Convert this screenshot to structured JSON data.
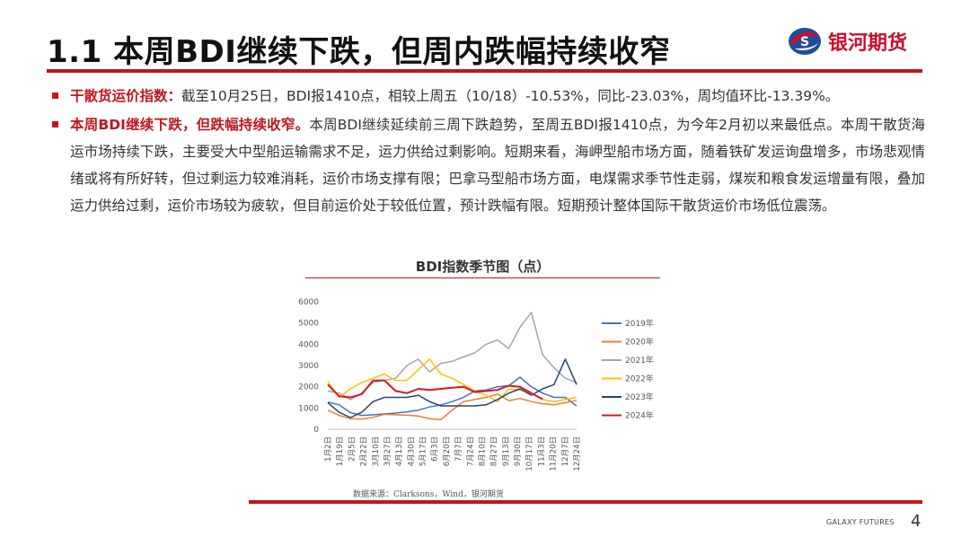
{
  "header": {
    "title": "1.1 本周BDI继续下跌，但周内跌幅持续收窄",
    "logo_text": "银河期货"
  },
  "bullets": [
    {
      "lead": "干散货运价指数：",
      "text": "截至10月25日，BDI报1410点，相较上周五（10/18）-10.53%，同比-23.03%，周均值环比-13.39%。"
    },
    {
      "lead": "本周BDI继续下跌，但跌幅持续收窄。",
      "text": "本周BDI继续延续前三周下跌趋势，至周五BDI报1410点，为今年2月初以来最低点。本周干散货海运市场持续下跌，主要受大中型船运输需求不足，运力供给过剩影响。短期来看，海岬型船市场方面，随着铁矿发运询盘增多，市场悲观情绪或将有所好转，但过剩运力较难消耗，运价市场支撑有限；巴拿马型船市场方面，电煤需求季节性走弱，煤炭和粮食发运增量有限，叠加运力供给过剩，运价市场较为疲软，但目前运价处于较低位置，预计跌幅有限。短期预计整体国际干散货运价市场低位震荡。"
    }
  ],
  "chart_title": "BDI指数季节图（点）",
  "chart_data": {
    "type": "line",
    "title": "BDI指数季节图（点）",
    "ylim": [
      0,
      6000
    ],
    "yticks": [
      0,
      1000,
      2000,
      3000,
      4000,
      5000,
      6000
    ],
    "xticks": [
      "1月2日",
      "1月19日",
      "2月5日",
      "2月22日",
      "3月10日",
      "3月27日",
      "4月13日",
      "4月30日",
      "5月17日",
      "6月3日",
      "6月20日",
      "7月7日",
      "7月24日",
      "8月10日",
      "8月27日",
      "9月13日",
      "9月30日",
      "10月17日",
      "11月3日",
      "11月20日",
      "12月7日",
      "12月24日"
    ],
    "legend_position": "right",
    "grid": false,
    "series": [
      {
        "name": "2019年",
        "color": "#4472c4",
        "values": [
          1280,
          1150,
          780,
          650,
          680,
          720,
          760,
          820,
          900,
          1050,
          1150,
          1300,
          1500,
          1800,
          1850,
          2000,
          2050,
          2450,
          2000,
          1700,
          1500,
          1500,
          1090
        ]
      },
      {
        "name": "2020年",
        "color": "#ed7d31",
        "values": [
          900,
          650,
          500,
          480,
          560,
          700,
          680,
          660,
          620,
          500,
          450,
          900,
          1300,
          1400,
          1500,
          1650,
          1350,
          1450,
          1300,
          1200,
          1150,
          1250,
          1360
        ]
      },
      {
        "name": "2021年",
        "color": "#a5a5a5",
        "values": [
          1800,
          1700,
          1400,
          1700,
          2200,
          2300,
          2400,
          3000,
          3300,
          2700,
          3100,
          3200,
          3400,
          3600,
          4000,
          4200,
          3800,
          4800,
          5500,
          3500,
          2900,
          2400,
          2200
        ]
      },
      {
        "name": "2022年",
        "color": "#ffc000",
        "values": [
          2250,
          1500,
          1900,
          2200,
          2400,
          2600,
          2300,
          2300,
          2800,
          3300,
          2600,
          2400,
          2100,
          1800,
          1600,
          1300,
          1900,
          1850,
          1700,
          1400,
          1300,
          1400,
          1500
        ]
      },
      {
        "name": "2023年",
        "color": "#264478",
        "values": [
          1250,
          800,
          550,
          800,
          1300,
          1500,
          1500,
          1500,
          1600,
          1300,
          1100,
          1100,
          1100,
          1100,
          1150,
          1400,
          1700,
          1900,
          1600,
          1900,
          2100,
          3300,
          2100
        ]
      },
      {
        "name": "2024年",
        "color": "#d7191c",
        "values": [
          2100,
          1550,
          1500,
          1650,
          2300,
          2300,
          1800,
          1700,
          1900,
          1850,
          1900,
          1950,
          2000,
          1750,
          1800,
          1850,
          2050,
          2000,
          1700,
          1410
        ]
      }
    ]
  },
  "source_text": "数据来源：Clarksons，Wind，银河期货",
  "footer": {
    "brand": "GALAXY FUTURES",
    "page_number": "4"
  },
  "colors": {
    "accent": "#c0161f"
  }
}
